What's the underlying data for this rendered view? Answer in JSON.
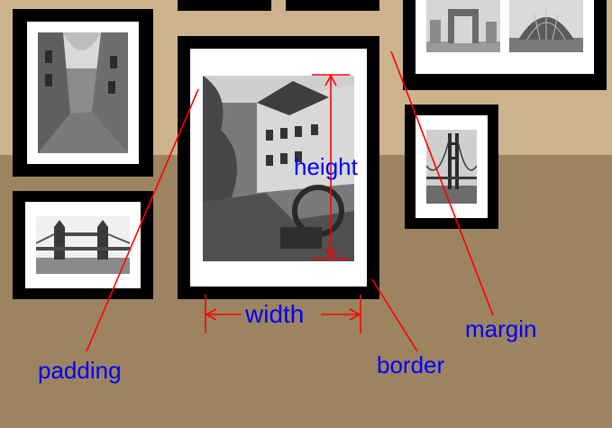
{
  "colors": {
    "wall_upper": "#cdb38d",
    "wall_lower": "#9c8461",
    "frame": "#000000",
    "mat": "#ffffff",
    "annotation_line": "#ff0000",
    "annotation_text": "#0000ff"
  },
  "labels": {
    "height": "height",
    "width": "width",
    "margin": "margin",
    "padding": "padding",
    "border": "border"
  },
  "photos": {
    "street": "alley-photo",
    "bridge_tower": "tower-bridge-photo",
    "mill": "mill-photo",
    "arch": "grande-arche-photo",
    "dome": "glass-dome-photo",
    "golden_gate": "golden-gate-photo"
  }
}
